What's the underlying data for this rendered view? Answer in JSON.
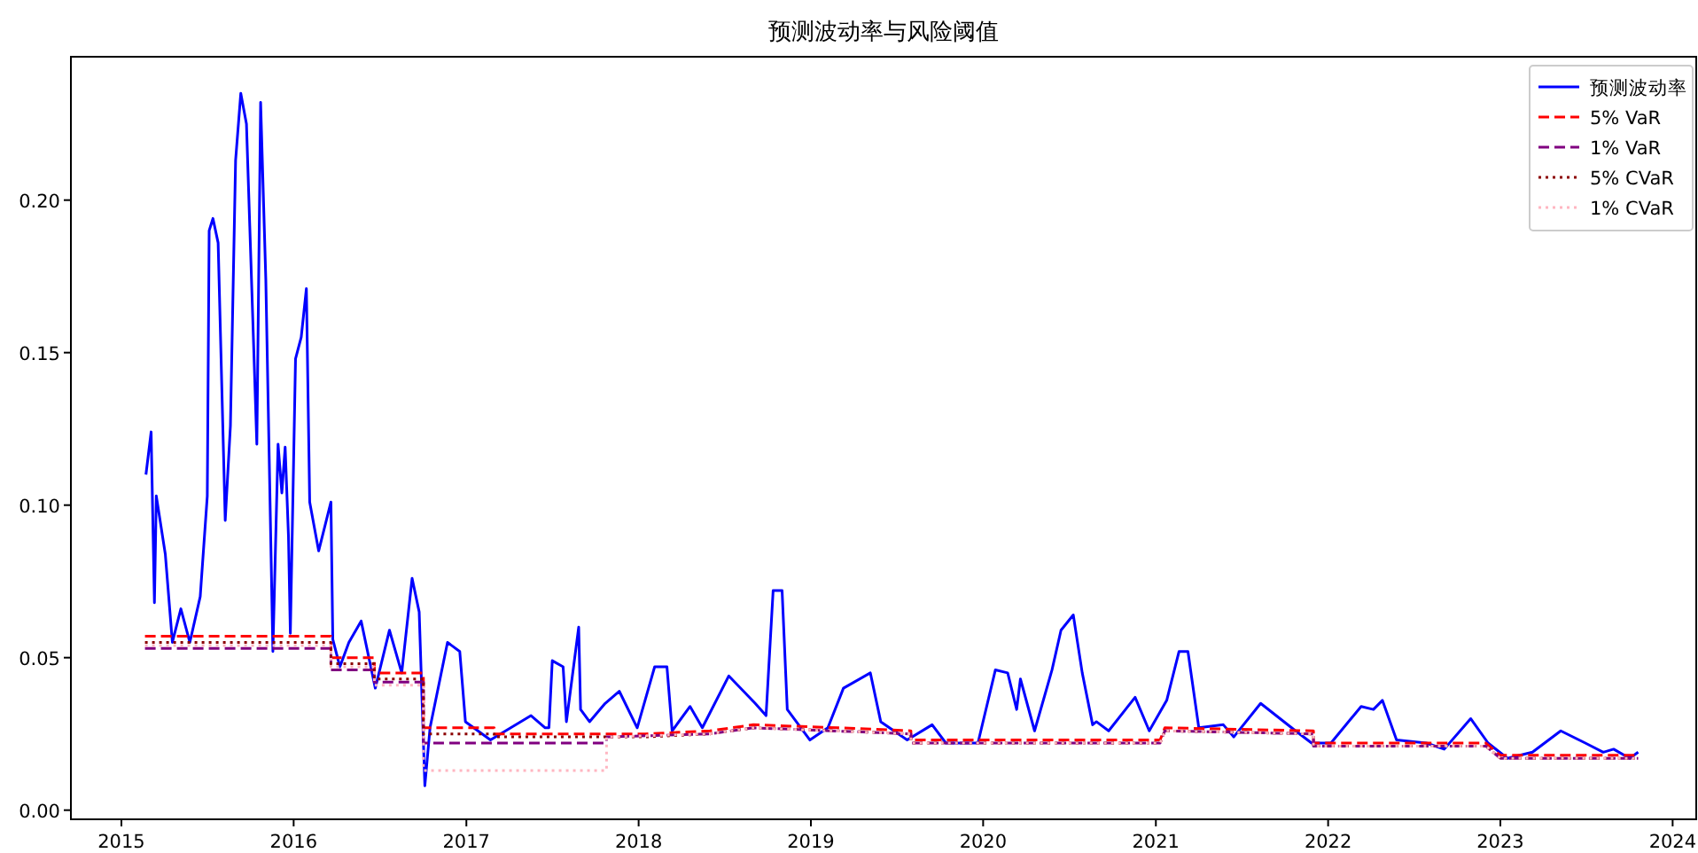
{
  "chart_data": {
    "type": "line",
    "title": "预测波动率与风险阈值",
    "legend": "top right",
    "xlim": [
      "2014-09-16",
      "2024-02-20"
    ],
    "xticks": [
      "2015",
      "2016",
      "2017",
      "2018",
      "2019",
      "2020",
      "2021",
      "2022",
      "2023",
      "2024"
    ],
    "ylim": [
      -0.003,
      0.247
    ],
    "yticks": [
      {
        "value": 0,
        "label": "0.00"
      },
      {
        "value": 0.05,
        "label": "0.05"
      },
      {
        "value": 0.1,
        "label": "0.10"
      },
      {
        "value": 0.15,
        "label": "0.15"
      },
      {
        "value": 0.2,
        "label": "0.20"
      }
    ],
    "series": [
      {
        "name": "预测波动率",
        "color": "#0000ff",
        "line_style": "solid",
        "x": [
          "2015-02-22",
          "2015-03-05",
          "2015-03-12",
          "2015-03-16",
          "2015-04-04",
          "2015-04-19",
          "2015-05-07",
          "2015-05-26",
          "2015-06-17",
          "2015-07-02",
          "2015-07-06",
          "2015-07-14",
          "2015-07-25",
          "2015-08-09",
          "2015-08-20",
          "2015-08-31",
          "2015-09-11",
          "2015-09-23",
          "2015-10-15",
          "2015-10-23",
          "2015-11-03",
          "2015-11-18",
          "2015-11-29",
          "2015-12-07",
          "2015-12-14",
          "2015-12-21",
          "2015-12-25",
          "2016-01-05",
          "2016-01-17",
          "2016-01-28",
          "2016-02-04",
          "2016-02-23",
          "2016-03-20",
          "2016-03-24",
          "2016-04-08",
          "2016-04-27",
          "2016-05-23",
          "2016-06-22",
          "2016-07-22",
          "2016-08-17",
          "2016-09-08",
          "2016-09-23",
          "2016-10-05",
          "2016-10-16",
          "2016-11-22",
          "2016-12-18",
          "2016-12-30",
          "2017-02-21",
          "2017-05-18",
          "2017-06-17",
          "2017-06-25",
          "2017-07-02",
          "2017-07-25",
          "2017-08-01",
          "2017-08-27",
          "2017-08-31",
          "2017-09-19",
          "2017-10-22",
          "2017-11-21",
          "2017-12-29",
          "2018-02-04",
          "2018-03-02",
          "2018-03-13",
          "2018-04-20",
          "2018-05-16",
          "2018-07-11",
          "2018-09-05",
          "2018-09-28",
          "2018-10-13",
          "2018-11-01",
          "2018-11-12",
          "2018-12-30",
          "2019-02-06",
          "2019-03-11",
          "2019-05-07",
          "2019-05-29",
          "2019-07-24",
          "2019-09-15",
          "2019-10-14",
          "2019-12-21",
          "2020-01-27",
          "2020-02-22",
          "2020-03-12",
          "2020-03-20",
          "2020-04-19",
          "2020-05-26",
          "2020-06-14",
          "2020-07-10",
          "2020-07-29",
          "2020-08-20",
          "2020-08-28",
          "2020-09-23",
          "2020-11-18",
          "2020-12-18",
          "2021-01-24",
          "2021-02-19",
          "2021-03-10",
          "2021-04-02",
          "2021-05-24",
          "2021-06-15",
          "2021-08-11",
          "2021-10-24",
          "2021-11-27",
          "2022-01-07",
          "2022-03-12",
          "2022-04-07",
          "2022-04-26",
          "2022-05-26",
          "2022-07-28",
          "2022-09-04",
          "2022-10-30",
          "2022-12-06",
          "2023-01-16",
          "2023-03-10",
          "2023-05-09",
          "2023-06-30",
          "2023-08-07",
          "2023-08-29",
          "2023-10-02",
          "2023-10-20"
        ],
        "values": [
          0.11,
          0.124,
          0.068,
          0.103,
          0.084,
          0.055,
          0.066,
          0.055,
          0.07,
          0.103,
          0.19,
          0.194,
          0.186,
          0.095,
          0.126,
          0.213,
          0.235,
          0.225,
          0.12,
          0.232,
          0.174,
          0.052,
          0.12,
          0.104,
          0.119,
          0.09,
          0.058,
          0.148,
          0.155,
          0.171,
          0.101,
          0.085,
          0.101,
          0.056,
          0.047,
          0.055,
          0.062,
          0.04,
          0.059,
          0.045,
          0.076,
          0.065,
          0.008,
          0.027,
          0.055,
          0.052,
          0.029,
          0.023,
          0.031,
          0.027,
          0.027,
          0.049,
          0.047,
          0.029,
          0.06,
          0.033,
          0.029,
          0.035,
          0.039,
          0.027,
          0.047,
          0.047,
          0.026,
          0.034,
          0.027,
          0.044,
          0.035,
          0.031,
          0.072,
          0.072,
          0.033,
          0.023,
          0.027,
          0.04,
          0.045,
          0.029,
          0.023,
          0.028,
          0.022,
          0.022,
          0.046,
          0.045,
          0.033,
          0.043,
          0.026,
          0.046,
          0.059,
          0.064,
          0.045,
          0.028,
          0.029,
          0.026,
          0.037,
          0.026,
          0.036,
          0.052,
          0.052,
          0.027,
          0.028,
          0.024,
          0.035,
          0.026,
          0.022,
          0.022,
          0.034,
          0.033,
          0.036,
          0.023,
          0.022,
          0.02,
          0.03,
          0.022,
          0.017,
          0.019,
          0.026,
          0.022,
          0.019,
          0.02,
          0.017,
          0.019
        ]
      },
      {
        "name": "5% VaR",
        "color": "#ff0000",
        "line_style": "dashed",
        "x": [
          "2015-02-20",
          "2016-03-20",
          "2016-03-20",
          "2016-06-20",
          "2016-06-20",
          "2016-10-02",
          "2016-10-02",
          "2017-03-01",
          "2017-03-01",
          "2018-01-15",
          "2018-06-01",
          "2018-09-01",
          "2019-03-01",
          "2019-08-01",
          "2019-08-01",
          "2021-01-10",
          "2021-01-20",
          "2021-12-01",
          "2021-12-01",
          "2022-12-01",
          "2023-01-01",
          "2023-10-20"
        ],
        "values": [
          0.057,
          0.057,
          0.05,
          0.05,
          0.045,
          0.045,
          0.027,
          0.027,
          0.025,
          0.025,
          0.026,
          0.028,
          0.027,
          0.026,
          0.023,
          0.023,
          0.027,
          0.026,
          0.022,
          0.022,
          0.018,
          0.018
        ]
      },
      {
        "name": "1% VaR",
        "color": "#800080",
        "line_style": "dashed",
        "x": [
          "2015-02-20",
          "2016-03-20",
          "2016-03-20",
          "2016-06-20",
          "2016-06-20",
          "2016-10-02",
          "2016-10-02",
          "2017-10-25",
          "2017-10-25",
          "2018-06-01",
          "2018-09-01",
          "2019-08-01",
          "2019-08-01",
          "2021-01-10",
          "2021-01-20",
          "2021-12-01",
          "2021-12-01",
          "2022-12-01",
          "2023-01-01",
          "2023-10-20"
        ],
        "values": [
          0.053,
          0.053,
          0.046,
          0.046,
          0.042,
          0.042,
          0.022,
          0.022,
          0.024,
          0.025,
          0.027,
          0.025,
          0.022,
          0.022,
          0.026,
          0.025,
          0.021,
          0.021,
          0.017,
          0.017
        ]
      },
      {
        "name": "5% CVaR",
        "color": "#8b0000",
        "line_style": "dotted",
        "x": [
          "2015-02-20",
          "2016-03-20",
          "2016-03-20",
          "2016-06-20",
          "2016-06-20",
          "2016-10-02",
          "2016-10-02",
          "2017-03-01",
          "2017-03-01",
          "2018-01-15",
          "2018-06-01",
          "2018-09-01",
          "2019-03-01",
          "2019-08-01",
          "2019-08-01",
          "2021-01-10",
          "2021-01-20",
          "2021-12-01",
          "2021-12-01",
          "2022-12-01",
          "2023-01-01",
          "2023-10-20"
        ],
        "values": [
          0.055,
          0.055,
          0.048,
          0.048,
          0.043,
          0.043,
          0.025,
          0.025,
          0.024,
          0.024,
          0.025,
          0.027,
          0.026,
          0.025,
          0.022,
          0.022,
          0.026,
          0.025,
          0.021,
          0.021,
          0.017,
          0.017
        ]
      },
      {
        "name": "1% CVaR",
        "color": "#ffb6c1",
        "line_style": "dotted",
        "x": [
          "2015-02-20",
          "2016-03-20",
          "2016-03-20",
          "2016-06-20",
          "2016-06-20",
          "2016-10-02",
          "2016-10-02",
          "2017-10-25",
          "2017-10-25",
          "2018-06-01",
          "2018-09-01",
          "2019-08-01",
          "2019-08-01",
          "2021-01-10",
          "2021-01-20",
          "2021-12-01",
          "2021-12-01",
          "2022-12-01",
          "2023-01-01",
          "2023-10-20"
        ],
        "values": [
          0.054,
          0.054,
          0.047,
          0.047,
          0.041,
          0.041,
          0.013,
          0.013,
          0.024,
          0.025,
          0.027,
          0.025,
          0.022,
          0.022,
          0.026,
          0.025,
          0.021,
          0.021,
          0.017,
          0.017
        ]
      }
    ]
  }
}
